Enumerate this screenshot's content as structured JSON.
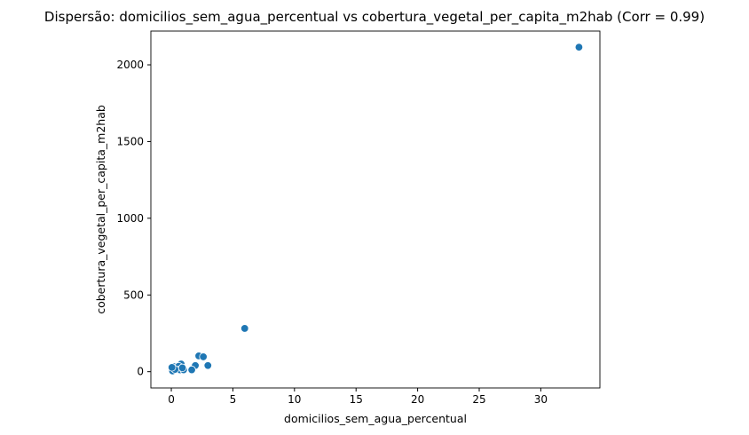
{
  "chart_data": {
    "type": "scatter",
    "title": "Dispersão: domicilios_sem_agua_percentual vs cobertura_vegetal_per_capita_m2hab (Corr = 0.99)",
    "xlabel": "domicilios_sem_agua_percentual",
    "ylabel": "cobertura_vegetal_per_capita_m2hab",
    "xlim": [
      -1.66,
      34.8
    ],
    "ylim": [
      -106,
      2220
    ],
    "xticks": [
      0,
      5,
      10,
      15,
      20,
      25,
      30
    ],
    "yticks": [
      0,
      500,
      1000,
      1500,
      2000
    ],
    "grid": false,
    "color": "#1f77b4",
    "points": [
      {
        "x": 33.1,
        "y": 2115
      },
      {
        "x": 5.96,
        "y": 282
      },
      {
        "x": 2.23,
        "y": 103
      },
      {
        "x": 2.6,
        "y": 97
      },
      {
        "x": 2.97,
        "y": 40
      },
      {
        "x": 1.95,
        "y": 40
      },
      {
        "x": 1.66,
        "y": 12
      },
      {
        "x": 0.8,
        "y": 50
      },
      {
        "x": 0.1,
        "y": 5
      },
      {
        "x": 0.2,
        "y": 33
      },
      {
        "x": 0.45,
        "y": 23
      },
      {
        "x": 0.6,
        "y": 35
      },
      {
        "x": 0.7,
        "y": 12
      },
      {
        "x": 1.0,
        "y": 12
      },
      {
        "x": 0.3,
        "y": 15
      },
      {
        "x": 0.05,
        "y": 28
      },
      {
        "x": 0.9,
        "y": 25
      }
    ]
  }
}
